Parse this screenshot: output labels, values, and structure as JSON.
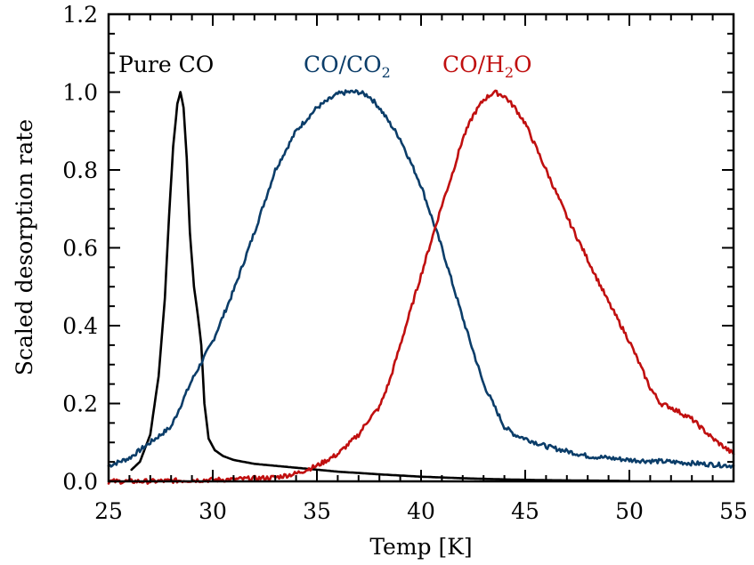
{
  "chart_data": {
    "type": "line",
    "title": "",
    "xlabel": "Temp [K]",
    "ylabel": "Scaled desorption rate",
    "xlim": [
      25,
      55
    ],
    "ylim": [
      0,
      1.2
    ],
    "x_ticks": [
      25,
      30,
      35,
      40,
      45,
      50,
      55
    ],
    "y_ticks": [
      "0.0",
      "0.2",
      "0.4",
      "0.6",
      "0.8",
      "1.0",
      "1.2"
    ],
    "x_minor_step": 1,
    "y_minor_step": 0.05,
    "grid": false,
    "legend": "inline labels at top",
    "series": [
      {
        "name": "Pure CO",
        "label_parts": {
          "main": "Pure CO",
          "sub": ""
        },
        "color": "#000000",
        "x": [
          26.1,
          26.5,
          27.0,
          27.4,
          27.7,
          27.9,
          28.1,
          28.3,
          28.45,
          28.6,
          28.75,
          28.9,
          29.1,
          29.3,
          29.45,
          29.6,
          29.8,
          30.1,
          30.5,
          31.0,
          32.0,
          33.0,
          34.0,
          35.0,
          36.0,
          38.0,
          40.0,
          42.0,
          44.0,
          46.0,
          48.0,
          50.0
        ],
        "y": [
          0.03,
          0.05,
          0.12,
          0.27,
          0.47,
          0.68,
          0.86,
          0.97,
          1.0,
          0.96,
          0.83,
          0.64,
          0.5,
          0.42,
          0.35,
          0.2,
          0.11,
          0.08,
          0.065,
          0.055,
          0.045,
          0.04,
          0.035,
          0.03,
          0.025,
          0.018,
          0.012,
          0.008,
          0.005,
          0.003,
          0.002,
          0.001
        ]
      },
      {
        "name": "CO/CO2",
        "label_parts": {
          "main": "CO/CO",
          "sub": "2"
        },
        "color": "#0b3d69",
        "x": [
          25.0,
          26.0,
          27.0,
          27.5,
          28.0,
          28.5,
          29.0,
          29.5,
          30.0,
          31.0,
          32.0,
          33.0,
          33.5,
          34.0,
          35.0,
          36.0,
          36.5,
          37.0,
          37.5,
          38.0,
          39.0,
          40.0,
          41.0,
          42.0,
          43.0,
          44.0,
          44.5,
          45.0,
          46.0,
          48.0,
          50.0,
          52.0,
          55.0
        ],
        "y": [
          0.04,
          0.06,
          0.1,
          0.12,
          0.14,
          0.2,
          0.26,
          0.31,
          0.36,
          0.49,
          0.64,
          0.8,
          0.85,
          0.9,
          0.96,
          0.995,
          1.0,
          1.0,
          0.99,
          0.96,
          0.88,
          0.76,
          0.6,
          0.42,
          0.25,
          0.14,
          0.12,
          0.11,
          0.09,
          0.065,
          0.055,
          0.05,
          0.04
        ]
      },
      {
        "name": "CO/H2O",
        "label_parts": {
          "main": "CO/H",
          "sub": "2",
          "tail": "O"
        },
        "color": "#c00f0f",
        "x": [
          25.0,
          27.0,
          29.0,
          31.0,
          33.0,
          34.0,
          35.0,
          36.0,
          37.0,
          37.5,
          38.0,
          38.5,
          39.0,
          39.5,
          40.0,
          40.5,
          41.0,
          41.5,
          42.0,
          42.5,
          43.0,
          43.5,
          44.0,
          44.5,
          45.0,
          46.0,
          47.0,
          48.0,
          49.0,
          50.0,
          51.0,
          51.5,
          52.0,
          53.0,
          54.0,
          55.0
        ],
        "y": [
          0.0,
          0.0,
          0.003,
          0.005,
          0.01,
          0.02,
          0.04,
          0.07,
          0.12,
          0.16,
          0.19,
          0.26,
          0.35,
          0.44,
          0.53,
          0.62,
          0.71,
          0.79,
          0.88,
          0.94,
          0.98,
          1.0,
          0.99,
          0.96,
          0.92,
          0.8,
          0.68,
          0.57,
          0.46,
          0.36,
          0.24,
          0.2,
          0.19,
          0.16,
          0.11,
          0.07
        ]
      }
    ]
  }
}
